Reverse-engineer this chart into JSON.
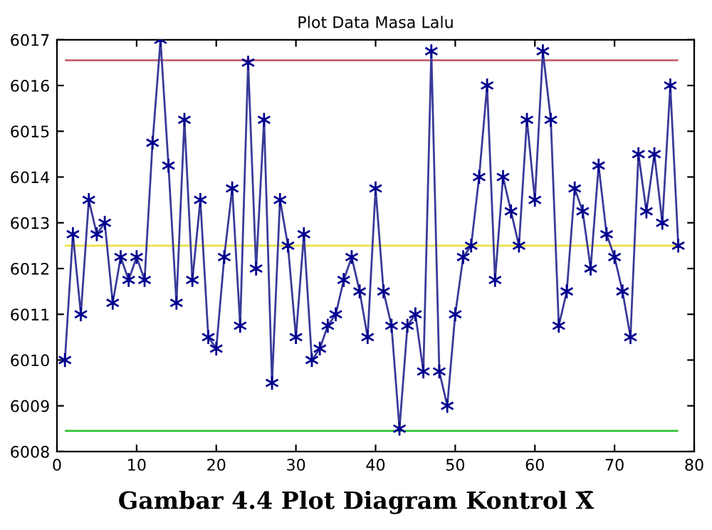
{
  "chart_data": {
    "type": "line",
    "title": "Plot Data Masa Lalu",
    "x": [
      1,
      2,
      3,
      4,
      5,
      6,
      7,
      8,
      9,
      10,
      11,
      12,
      13,
      14,
      15,
      16,
      17,
      18,
      19,
      20,
      21,
      22,
      23,
      24,
      25,
      26,
      27,
      28,
      29,
      30,
      31,
      32,
      33,
      34,
      35,
      36,
      37,
      38,
      39,
      40,
      41,
      42,
      43,
      44,
      45,
      46,
      47,
      48,
      49,
      50,
      51,
      52,
      53,
      54,
      55,
      56,
      57,
      58,
      59,
      60,
      61,
      62,
      63,
      64,
      65,
      66,
      67,
      68,
      69,
      70,
      71,
      72,
      73,
      74,
      75,
      76,
      77,
      78
    ],
    "series": [
      {
        "color": "#3a3a9a",
        "values": [
          6010,
          6012.75,
          6011,
          6013.5,
          6012.75,
          6013,
          6011.25,
          6012.25,
          6011.75,
          6012.25,
          6011.75,
          6014.75,
          6017,
          6014.25,
          6011.25,
          6015.25,
          6011.75,
          6013.5,
          6010.5,
          6010.25,
          6012.25,
          6013.75,
          6010.75,
          6016.5,
          6012,
          6015.25,
          6009.5,
          6013.5,
          6012.5,
          6010.5,
          6012.75,
          6010,
          6010.25,
          6010.75,
          6011,
          6011.75,
          6012.25,
          6011.5,
          6010.5,
          6013.75,
          6011.5,
          6010.75,
          6008.5,
          6010.75,
          6011,
          6009.75,
          6016.75,
          6009.75,
          6009,
          6011,
          6012.25,
          6012.5,
          6014,
          6016,
          6011.75,
          6014,
          6013.25,
          6012.5,
          6015.25,
          6013.5,
          6016.75,
          6015.25,
          6010.75,
          6011.5,
          6013.75,
          6013.25,
          6012,
          6014.25,
          6012.75,
          6012.25,
          6011.5,
          6010.5,
          6014.5,
          6013.25,
          6014.5,
          6013,
          6016,
          6012.5
        ]
      }
    ],
    "marker": "cross",
    "line_style": "solid",
    "ref_lines": [
      {
        "axis": "y",
        "value": 6016.55,
        "color": "#c06070"
      },
      {
        "axis": "y",
        "value": 6012.5,
        "color": "#e8e040"
      },
      {
        "axis": "y",
        "value": 6008.45,
        "color": "#30c030"
      }
    ],
    "xlim": [
      0,
      80
    ],
    "xticks": [
      0,
      10,
      20,
      30,
      40,
      50,
      60,
      70,
      80
    ],
    "ylim": [
      6008,
      6017
    ],
    "yticks": [
      6008,
      6009,
      6010,
      6011,
      6012,
      6013,
      6014,
      6015,
      6016,
      6017
    ],
    "grid": false,
    "annotations": [
      "Gambar 4.4 Plot Diagram Kontrol X̄"
    ]
  }
}
